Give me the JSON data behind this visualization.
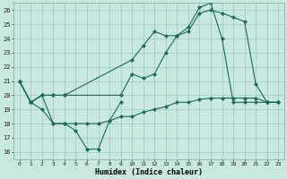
{
  "xlabel": "Humidex (Indice chaleur)",
  "xlim": [
    -0.5,
    23.5
  ],
  "ylim": [
    15.5,
    26.5
  ],
  "yticks": [
    16,
    17,
    18,
    19,
    20,
    21,
    22,
    23,
    24,
    25,
    26
  ],
  "xticks": [
    0,
    1,
    2,
    3,
    4,
    5,
    6,
    7,
    8,
    9,
    10,
    11,
    12,
    13,
    14,
    15,
    16,
    17,
    18,
    19,
    20,
    21,
    22,
    23
  ],
  "bg_color": "#c8e8e0",
  "grid_color": "#a0c8be",
  "line_color": "#1a6b5a",
  "lineA_x": [
    0,
    1,
    2,
    3,
    4,
    5,
    6,
    7,
    8,
    9
  ],
  "lineA_y": [
    21.0,
    19.5,
    19.0,
    18.0,
    18.0,
    17.5,
    16.2,
    16.2,
    18.2,
    19.5
  ],
  "lineB_x": [
    0,
    1,
    2,
    3,
    4,
    10,
    11,
    12,
    13,
    14,
    15,
    16,
    17,
    18,
    19,
    20,
    21,
    22,
    23
  ],
  "lineB_y": [
    21.0,
    19.5,
    20.0,
    20.0,
    20.0,
    22.5,
    23.5,
    24.5,
    24.2,
    24.2,
    24.5,
    25.8,
    26.0,
    25.8,
    25.5,
    25.2,
    20.8,
    19.5,
    19.5
  ],
  "lineC_x": [
    0,
    1,
    2,
    3,
    4,
    5,
    6,
    7,
    8,
    9,
    10,
    11,
    12,
    13,
    14,
    15,
    16,
    17,
    18,
    19,
    20,
    21,
    22,
    23
  ],
  "lineC_y": [
    21.0,
    19.5,
    20.0,
    18.0,
    18.0,
    18.0,
    18.0,
    18.0,
    18.2,
    18.5,
    18.5,
    18.8,
    19.0,
    19.2,
    19.5,
    19.5,
    19.7,
    19.8,
    19.8,
    19.8,
    19.8,
    19.8,
    19.5,
    19.5
  ],
  "lineD_x": [
    0,
    1,
    2,
    3,
    4,
    9,
    10,
    11,
    12,
    13,
    14,
    15,
    16,
    17,
    18,
    19,
    20,
    21,
    22,
    23
  ],
  "lineD_y": [
    21.0,
    19.5,
    20.0,
    20.0,
    20.0,
    20.0,
    21.5,
    21.2,
    21.5,
    23.0,
    24.2,
    24.8,
    26.2,
    26.5,
    24.0,
    19.5,
    19.5,
    19.5,
    19.5,
    19.5
  ]
}
